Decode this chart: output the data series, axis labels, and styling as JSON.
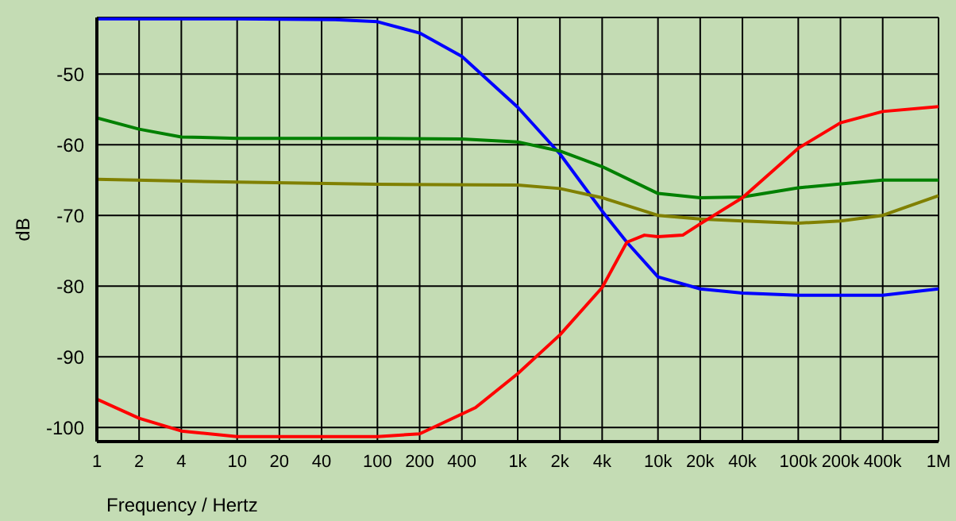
{
  "chart_data": {
    "type": "line",
    "xlabel": "Frequency / Hertz",
    "ylabel": "dB",
    "log": "x",
    "grid": true,
    "legend": false,
    "marker": "none",
    "line_style": "solid",
    "xlim": [
      1,
      1000000
    ],
    "ylim": [
      -102,
      -42
    ],
    "xticks": [
      1,
      2,
      4,
      10,
      20,
      40,
      100,
      200,
      400,
      {
        "value": 1000,
        "label": "1k"
      },
      {
        "value": 2000,
        "label": "2k"
      },
      {
        "value": 4000,
        "label": "4k"
      },
      {
        "value": 10000,
        "label": "10k"
      },
      {
        "value": 20000,
        "label": "20k"
      },
      {
        "value": 40000,
        "label": "40k"
      },
      {
        "value": 100000,
        "label": "100k"
      },
      {
        "value": 200000,
        "label": "200k"
      },
      {
        "value": 400000,
        "label": "400k"
      },
      {
        "value": 1000000,
        "label": "1M"
      }
    ],
    "yticks": [
      -50,
      -60,
      -70,
      -80,
      -90,
      -100
    ],
    "series": [
      {
        "color": "#0000ff",
        "x": [
          1,
          10,
          50,
          100,
          200,
          400,
          1000,
          2000,
          4000,
          6000,
          10000,
          20000,
          40000,
          100000,
          400000,
          1000000
        ],
        "values": [
          -42.2,
          -42.2,
          -42.3,
          -42.6,
          -44.2,
          -47.5,
          -54.7,
          -61.3,
          -69.4,
          -73.8,
          -78.7,
          -80.4,
          -81.0,
          -81.3,
          -81.3,
          -80.4
        ]
      },
      {
        "color": "#008000",
        "x": [
          1,
          2,
          4,
          10,
          100,
          400,
          1000,
          2000,
          4000,
          10000,
          20000,
          40000,
          100000,
          400000,
          1000000
        ],
        "values": [
          -56.2,
          -57.8,
          -58.9,
          -59.1,
          -59.1,
          -59.2,
          -59.6,
          -60.9,
          -63.1,
          -66.9,
          -67.5,
          -67.4,
          -66.1,
          -65.0,
          -65.0
        ]
      },
      {
        "color": "#808000",
        "x": [
          1,
          10,
          100,
          1000,
          2000,
          4000,
          10000,
          20000,
          40000,
          100000,
          200000,
          400000,
          1000000
        ],
        "values": [
          -64.9,
          -65.3,
          -65.6,
          -65.7,
          -66.2,
          -67.5,
          -70.0,
          -70.5,
          -70.8,
          -71.1,
          -70.8,
          -70.0,
          -67.2
        ]
      },
      {
        "color": "#ff0000",
        "x": [
          1,
          2,
          4,
          10,
          100,
          200,
          500,
          1000,
          2000,
          4000,
          6000,
          8000,
          10000,
          15000,
          20000,
          40000,
          100000,
          200000,
          400000,
          1000000
        ],
        "values": [
          -96.0,
          -98.7,
          -100.5,
          -101.3,
          -101.3,
          -100.9,
          -97.2,
          -92.4,
          -86.9,
          -80.2,
          -73.8,
          -72.8,
          -73.0,
          -72.8,
          -71.2,
          -67.5,
          -60.5,
          -56.9,
          -55.3,
          -54.6
        ]
      }
    ]
  }
}
